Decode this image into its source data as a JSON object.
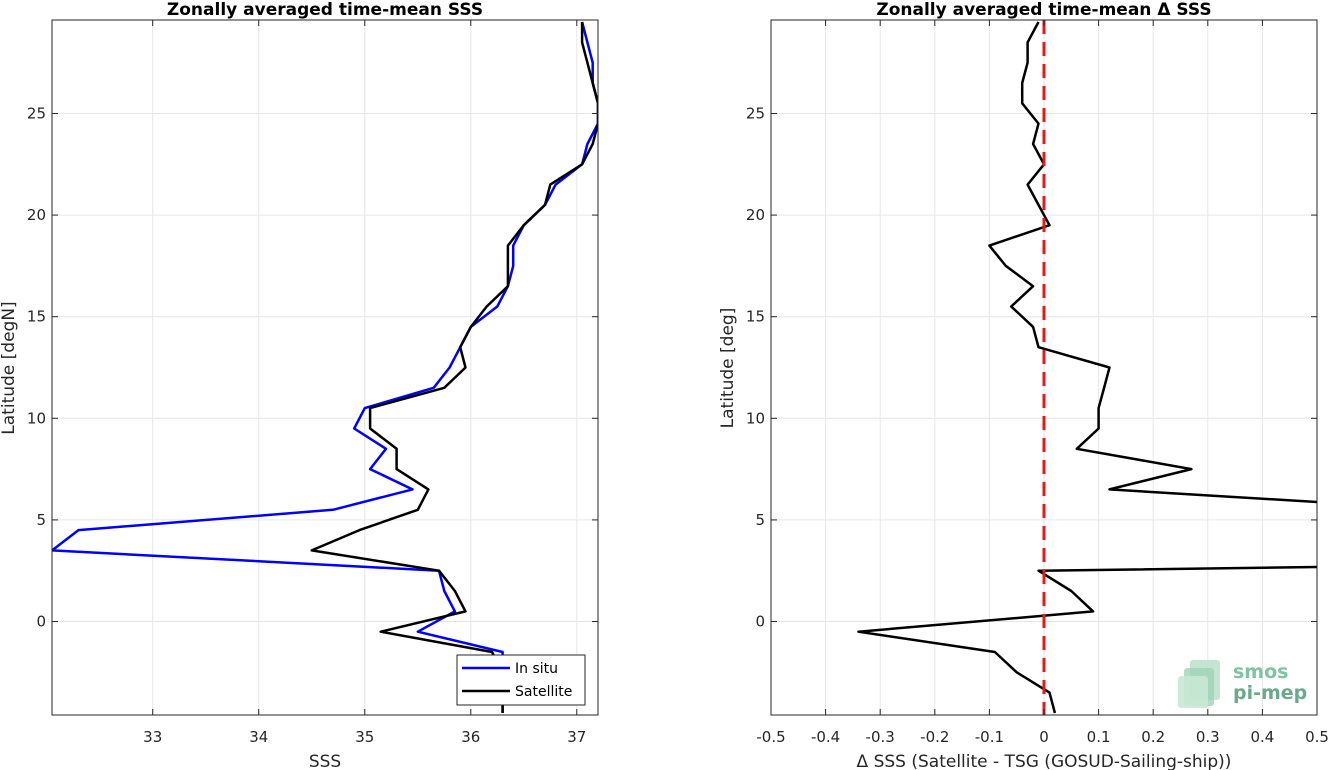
{
  "chart_data": [
    {
      "type": "line",
      "title": "Zonally averaged time-mean SSS",
      "xlabel": "SSS",
      "ylabel": "Latitude [degN]",
      "xlim": [
        32.05,
        37.2
      ],
      "ylim": [
        -4.6,
        29.6
      ],
      "xticks": [
        33,
        34,
        35,
        36,
        37
      ],
      "yticks": [
        0,
        5,
        10,
        15,
        20,
        25
      ],
      "grid": true,
      "legend_position": "bottom-right",
      "series": [
        {
          "name": "In situ",
          "color": "#0000ff",
          "points": [
            [
              37.05,
              29.5
            ],
            [
              37.1,
              28.5
            ],
            [
              37.15,
              27.5
            ],
            [
              37.15,
              26.5
            ],
            [
              37.2,
              25.5
            ],
            [
              37.2,
              24.5
            ],
            [
              37.1,
              23.5
            ],
            [
              37.05,
              22.5
            ],
            [
              36.8,
              21.5
            ],
            [
              36.7,
              20.5
            ],
            [
              36.5,
              19.5
            ],
            [
              36.4,
              18.5
            ],
            [
              36.4,
              17.5
            ],
            [
              36.35,
              16.5
            ],
            [
              36.25,
              15.5
            ],
            [
              36.0,
              14.5
            ],
            [
              35.9,
              13.5
            ],
            [
              35.8,
              12.5
            ],
            [
              35.65,
              11.5
            ],
            [
              35.0,
              10.5
            ],
            [
              34.9,
              9.5
            ],
            [
              35.2,
              8.5
            ],
            [
              35.05,
              7.5
            ],
            [
              35.45,
              6.5
            ],
            [
              34.7,
              5.5
            ],
            [
              32.3,
              4.5
            ],
            [
              32.05,
              3.5
            ],
            [
              35.7,
              2.5
            ],
            [
              35.75,
              1.5
            ],
            [
              35.85,
              0.5
            ],
            [
              35.5,
              -0.5
            ],
            [
              36.3,
              -1.5
            ],
            [
              36.3,
              -2.5
            ],
            [
              36.3,
              -3.5
            ],
            [
              36.3,
              -4.5
            ]
          ]
        },
        {
          "name": "Satellite",
          "color": "#000000",
          "points": [
            [
              37.05,
              29.5
            ],
            [
              37.05,
              28.5
            ],
            [
              37.1,
              27.5
            ],
            [
              37.15,
              26.5
            ],
            [
              37.2,
              25.5
            ],
            [
              37.2,
              24.5
            ],
            [
              37.15,
              23.5
            ],
            [
              37.05,
              22.5
            ],
            [
              36.75,
              21.5
            ],
            [
              36.7,
              20.5
            ],
            [
              36.5,
              19.5
            ],
            [
              36.35,
              18.5
            ],
            [
              36.35,
              17.5
            ],
            [
              36.35,
              16.5
            ],
            [
              36.15,
              15.5
            ],
            [
              36.0,
              14.5
            ],
            [
              35.9,
              13.5
            ],
            [
              35.95,
              12.5
            ],
            [
              35.75,
              11.5
            ],
            [
              35.05,
              10.5
            ],
            [
              35.05,
              9.5
            ],
            [
              35.3,
              8.5
            ],
            [
              35.3,
              7.5
            ],
            [
              35.6,
              6.5
            ],
            [
              35.5,
              5.5
            ],
            [
              34.95,
              4.5
            ],
            [
              34.5,
              3.5
            ],
            [
              35.7,
              2.5
            ],
            [
              35.85,
              1.5
            ],
            [
              35.95,
              0.5
            ],
            [
              35.15,
              -0.5
            ],
            [
              36.2,
              -1.5
            ],
            [
              36.3,
              -2.5
            ],
            [
              36.3,
              -3.5
            ],
            [
              36.3,
              -4.5
            ]
          ]
        }
      ]
    },
    {
      "type": "line",
      "title": "Zonally averaged time-mean Δ SSS",
      "xlabel": "Δ SSS (Satellite - TSG (GOSUD-Sailing-ship))",
      "ylabel": "Latitude [deg]",
      "xlim": [
        -0.5,
        0.5
      ],
      "ylim": [
        -4.6,
        29.6
      ],
      "xticks": [
        -0.5,
        -0.4,
        -0.3,
        -0.2,
        -0.1,
        0,
        0.1,
        0.2,
        0.3,
        0.4,
        0.5
      ],
      "xticklabels": [
        "-0.5",
        "-0.4",
        "-0.3",
        "-0.2",
        "-0.1",
        "0",
        "0.1",
        "0.2",
        "0.3",
        "0.4",
        "0.5"
      ],
      "yticks": [
        0,
        5,
        10,
        15,
        20,
        25
      ],
      "grid": true,
      "reference_line": {
        "x": 0,
        "style": "dashed",
        "color": "#e61919"
      },
      "series": [
        {
          "name": "",
          "color": "#000000",
          "points": [
            [
              -0.01,
              29.5
            ],
            [
              -0.03,
              28.5
            ],
            [
              -0.03,
              27.5
            ],
            [
              -0.04,
              26.5
            ],
            [
              -0.04,
              25.5
            ],
            [
              -0.01,
              24.5
            ],
            [
              -0.02,
              23.5
            ],
            [
              0.0,
              22.5
            ],
            [
              -0.03,
              21.5
            ],
            [
              -0.01,
              20.5
            ],
            [
              0.01,
              19.5
            ],
            [
              -0.1,
              18.5
            ],
            [
              -0.07,
              17.5
            ],
            [
              -0.02,
              16.5
            ],
            [
              -0.06,
              15.5
            ],
            [
              -0.02,
              14.5
            ],
            [
              -0.01,
              13.5
            ],
            [
              0.12,
              12.5
            ],
            [
              0.11,
              11.5
            ],
            [
              0.1,
              10.5
            ],
            [
              0.1,
              9.5
            ],
            [
              0.06,
              8.5
            ],
            [
              0.27,
              7.5
            ],
            [
              0.12,
              6.5
            ],
            [
              0.55,
              5.8
            ],
            [
              0.55,
              2.7
            ],
            [
              -0.01,
              2.5
            ],
            [
              0.05,
              1.5
            ],
            [
              0.09,
              0.5
            ],
            [
              -0.34,
              -0.5
            ],
            [
              -0.09,
              -1.5
            ],
            [
              -0.05,
              -2.5
            ],
            [
              0.01,
              -3.5
            ],
            [
              0.02,
              -4.5
            ]
          ]
        }
      ]
    }
  ],
  "legend": {
    "items": [
      "In situ",
      "Satellite"
    ]
  },
  "logo": {
    "line1": "smos",
    "line2": "pi-mep"
  }
}
